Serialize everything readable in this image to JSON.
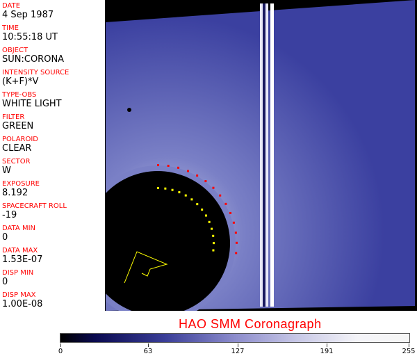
{
  "header_fields": [
    {
      "label": "DATE",
      "value": "4 Sep 1987"
    },
    {
      "label": "TIME",
      "value": "10:55:18 UT"
    },
    {
      "label": "OBJECT",
      "value": "SUN:CORONA"
    },
    {
      "label": "INTENSITY SOURCE",
      "value": "(K+F)*V"
    },
    {
      "label": "TYPE-OBS",
      "value": "WHITE LIGHT"
    },
    {
      "label": "FILTER",
      "value": "GREEN"
    },
    {
      "label": "POLAROID",
      "value": "CLEAR"
    },
    {
      "label": "SECTOR",
      "value": "W"
    },
    {
      "label": "EXPOSURE",
      "value": "8.192"
    },
    {
      "label": "SPACECRAFT ROLL",
      "value": "-19"
    },
    {
      "label": "DATA MIN",
      "value": "0"
    },
    {
      "label": "DATA MAX",
      "value": "1.53E-07"
    },
    {
      "label": "DISP MIN",
      "value": "0"
    },
    {
      "label": "DISP MAX",
      "value": "1.00E-08"
    }
  ],
  "title": "HAO  SMM Coronagraph",
  "colorbar": {
    "ticks": [
      "0",
      "63",
      "127",
      "191",
      "255"
    ],
    "colors": [
      "#000000",
      "#0a0a50",
      "#3a3e98",
      "#8c8ccc",
      "#f4f4f8"
    ]
  },
  "overlay_colors": {
    "limb": "#ff0000",
    "grid": "#ffff00"
  }
}
